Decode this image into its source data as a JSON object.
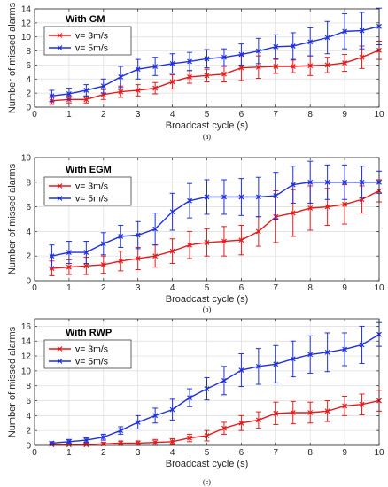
{
  "chart_data": [
    {
      "type": "line",
      "panel": "(a)",
      "legend_title": "With GM",
      "xlabel": "Broadcast cycle (s)",
      "ylabel": "Number of missed alarms",
      "xlim": [
        0,
        10
      ],
      "ylim": [
        0,
        14
      ],
      "xticks": [
        0,
        1,
        2,
        3,
        4,
        5,
        6,
        7,
        8,
        9,
        10
      ],
      "yticks": [
        0,
        2,
        4,
        6,
        8,
        10,
        12,
        14
      ],
      "grid": true,
      "legend_position": "top-left",
      "x": [
        0.5,
        1,
        1.5,
        2,
        2.5,
        3,
        3.5,
        4,
        4.5,
        5,
        5.5,
        6,
        6.5,
        7,
        7.5,
        8,
        8.5,
        9,
        9.5,
        10
      ],
      "series": [
        {
          "name": "v= 3m/s",
          "color": "#e41a1c",
          "values": [
            0.9,
            1.1,
            1.1,
            1.8,
            2.2,
            2.4,
            2.7,
            3.6,
            4.3,
            4.5,
            4.7,
            5.6,
            5.7,
            5.8,
            5.8,
            5.9,
            6.0,
            6.3,
            7.1,
            8.1
          ],
          "errors": [
            0.5,
            0.5,
            0.5,
            0.7,
            0.8,
            0.8,
            0.8,
            1.0,
            0.9,
            0.9,
            1.1,
            1.8,
            1.6,
            1.0,
            0.9,
            1.4,
            1.1,
            1.2,
            1.6,
            1.3
          ]
        },
        {
          "name": "v= 5m/s",
          "color": "#1f2fdc",
          "values": [
            1.6,
            1.9,
            2.4,
            3.0,
            4.3,
            5.4,
            5.8,
            6.2,
            6.5,
            6.9,
            7.1,
            7.5,
            8.0,
            8.6,
            8.7,
            9.3,
            9.9,
            10.8,
            10.9,
            11.5
          ],
          "errors": [
            0.8,
            0.8,
            0.8,
            1.0,
            1.5,
            1.4,
            1.3,
            1.4,
            1.3,
            1.3,
            1.2,
            1.5,
            1.8,
            1.7,
            1.9,
            2.0,
            2.3,
            2.5,
            2.6,
            2.6
          ]
        }
      ]
    },
    {
      "type": "line",
      "panel": "(b)",
      "legend_title": "With EGM",
      "xlabel": "Broadcast cycle (s)",
      "ylabel": "Number of missed alarms",
      "xlim": [
        0,
        10
      ],
      "ylim": [
        0,
        10
      ],
      "xticks": [
        0,
        1,
        2,
        3,
        4,
        5,
        6,
        7,
        8,
        9,
        10
      ],
      "yticks": [
        0,
        2,
        4,
        6,
        8,
        10
      ],
      "grid": true,
      "legend_position": "top-left",
      "x": [
        0.5,
        1,
        1.5,
        2,
        2.5,
        3,
        3.5,
        4,
        4.5,
        5,
        5.5,
        6,
        6.5,
        7,
        7.5,
        8,
        8.5,
        9,
        9.5,
        10
      ],
      "series": [
        {
          "name": "v= 3m/s",
          "color": "#e41a1c",
          "values": [
            1.0,
            1.1,
            1.2,
            1.3,
            1.6,
            1.8,
            2.0,
            2.4,
            2.9,
            3.1,
            3.2,
            3.3,
            4.0,
            5.2,
            5.5,
            5.9,
            6.0,
            6.2,
            6.6,
            7.3
          ],
          "errors": [
            0.6,
            0.6,
            0.7,
            0.7,
            0.8,
            0.9,
            0.9,
            1.0,
            1.1,
            1.1,
            1.2,
            1.2,
            1.2,
            2.1,
            1.9,
            1.8,
            1.5,
            1.6,
            1.1,
            0.9
          ]
        },
        {
          "name": "v= 5m/s",
          "color": "#1f2fdc",
          "values": [
            2.0,
            2.3,
            2.3,
            3.0,
            3.6,
            3.7,
            4.2,
            5.6,
            6.5,
            6.8,
            6.8,
            6.8,
            6.8,
            6.9,
            7.8,
            8.0,
            8.0,
            8.0,
            8.0,
            8.0
          ],
          "errors": [
            0.9,
            0.9,
            0.9,
            0.9,
            0.9,
            1.1,
            1.3,
            1.5,
            1.4,
            1.4,
            1.4,
            1.5,
            1.6,
            1.9,
            1.5,
            1.7,
            1.4,
            1.4,
            1.3,
            0.9
          ]
        }
      ]
    },
    {
      "type": "line",
      "panel": "(c)",
      "legend_title": "With RWP",
      "xlabel": "Broadcast cycle (s)",
      "ylabel": "Number of missed alarms",
      "xlim": [
        0,
        10
      ],
      "ylim": [
        0,
        17
      ],
      "xticks": [
        0,
        1,
        2,
        3,
        4,
        5,
        6,
        7,
        8,
        9,
        10
      ],
      "yticks": [
        0,
        2,
        4,
        6,
        8,
        10,
        12,
        14,
        16
      ],
      "grid": true,
      "legend_position": "top-left",
      "x": [
        0.5,
        1,
        1.5,
        2,
        2.5,
        3,
        3.5,
        4,
        4.5,
        5,
        5.5,
        6,
        6.5,
        7,
        7.5,
        8,
        8.5,
        9,
        9.5,
        10
      ],
      "series": [
        {
          "name": "v= 3m/s",
          "color": "#e41a1c",
          "values": [
            0.1,
            0.1,
            0.1,
            0.2,
            0.3,
            0.3,
            0.4,
            0.5,
            1.0,
            1.3,
            2.3,
            3.0,
            3.4,
            4.3,
            4.4,
            4.4,
            4.6,
            5.3,
            5.5,
            6.0
          ],
          "errors": [
            0.1,
            0.1,
            0.2,
            0.2,
            0.3,
            0.3,
            0.4,
            0.4,
            0.5,
            0.7,
            0.8,
            1.0,
            1.1,
            1.5,
            1.5,
            1.4,
            1.4,
            1.3,
            1.4,
            1.4
          ]
        },
        {
          "name": "v= 5m/s",
          "color": "#1f2fdc",
          "values": [
            0.3,
            0.5,
            0.7,
            1.1,
            2.0,
            3.1,
            4.0,
            4.8,
            6.4,
            7.6,
            8.7,
            10.1,
            10.6,
            10.9,
            11.6,
            12.2,
            12.5,
            12.9,
            13.5,
            14.9
          ],
          "errors": [
            0.2,
            0.3,
            0.3,
            0.4,
            0.5,
            0.9,
            1.0,
            1.4,
            1.2,
            1.5,
            1.9,
            2.2,
            2.4,
            2.5,
            2.4,
            2.5,
            2.6,
            2.2,
            2.5,
            1.6
          ]
        }
      ]
    }
  ]
}
